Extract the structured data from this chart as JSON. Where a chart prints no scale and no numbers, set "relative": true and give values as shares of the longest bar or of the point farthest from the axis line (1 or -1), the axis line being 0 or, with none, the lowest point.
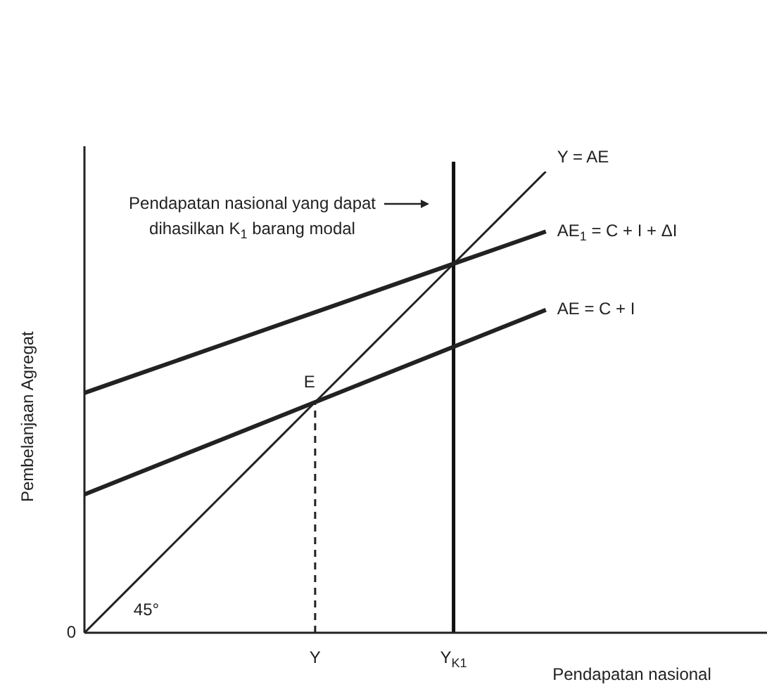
{
  "chart_data": {
    "type": "line",
    "relative": true,
    "xlabel": "Pendapatan nasional",
    "ylabel": "Pembelanjaan Agregat",
    "legend": false,
    "marker": "none",
    "line_style": "solid",
    "categories": [
      null,
      null,
      null,
      null,
      null,
      "Y",
      null,
      null,
      "Y$_{K1}$",
      null,
      null,
      null,
      null,
      null,
      null
    ],
    "series": [
      {
        "name": "Y = AE",
        "color": "#222222",
        "values": [
          0,
          0.1,
          0.2,
          0.3,
          0.4,
          0.5,
          0.6,
          0.7,
          0.8,
          0.9,
          1.0,
          null,
          null,
          null,
          null
        ]
      },
      {
        "name": "AE$_{1}$ = C + I + ΔI",
        "color": "#222222",
        "values": [
          0.52,
          0.555,
          0.59,
          0.625,
          0.66,
          0.695,
          0.73,
          0.765,
          0.8,
          0.835,
          0.87,
          null,
          null,
          null,
          null
        ]
      },
      {
        "name": "AE = C + I",
        "color": "#222222",
        "values": [
          0.3,
          0.34,
          0.38,
          0.42,
          0.46,
          0.5,
          0.54,
          0.58,
          0.62,
          0.66,
          0.7,
          null,
          null,
          null,
          null
        ]
      }
    ],
    "ref_lines": [
      {
        "axis": "x",
        "value": "Y",
        "line_style": "dashed",
        "color": "#222222"
      },
      {
        "axis": "x",
        "value": "Y$_{K1}$",
        "color": "#111111"
      }
    ],
    "annotations": [
      "Pendapatan nasional yang dapat dihasilkan K$_{1}$ barang modal",
      "45°",
      "0",
      {
        "text": "E",
        "x": "Y",
        "y": 0.5
      }
    ]
  }
}
